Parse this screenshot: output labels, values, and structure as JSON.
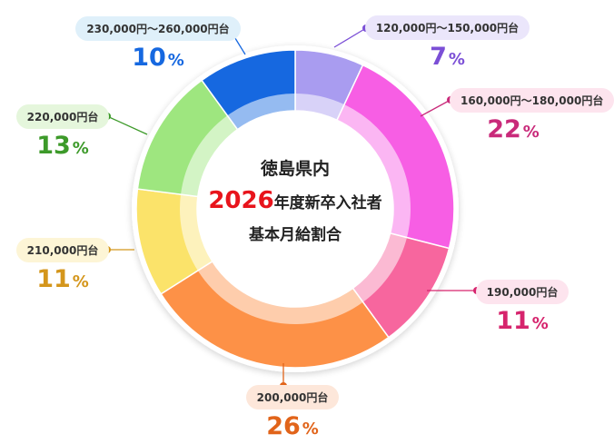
{
  "center": {
    "line1": "徳島県内",
    "year": "2026",
    "line2_rest": "年度新卒入社者",
    "line3": "基本月給割合"
  },
  "chart_data": {
    "type": "pie",
    "style": "donut",
    "categories": [
      "120,000円～150,000円台",
      "160,000円～180,000円台",
      "190,000円台",
      "200,000円台",
      "210,000円台",
      "220,000円台",
      "230,000円～260,000円台"
    ],
    "values": [
      7,
      22,
      11,
      26,
      11,
      13,
      10
    ],
    "value_labels": [
      "7%",
      "22%",
      "11%",
      "26%",
      "11%",
      "13%",
      "10%"
    ],
    "colors": [
      "#a99cf0",
      "#f75ee4",
      "#f7669e",
      "#fd9147",
      "#fbe36a",
      "#9ee67f",
      "#1668e0"
    ],
    "label_colors": [
      "#7b4fd6",
      "#c92a7a",
      "#d6246d",
      "#e1641a",
      "#d4961c",
      "#3d9a2a",
      "#1668e0"
    ],
    "pill_colors": [
      "#ebe6fb",
      "#fde4ee",
      "#fde4ee",
      "#fde7da",
      "#fdf5d6",
      "#e5f6dc",
      "#dff0fa"
    ]
  }
}
